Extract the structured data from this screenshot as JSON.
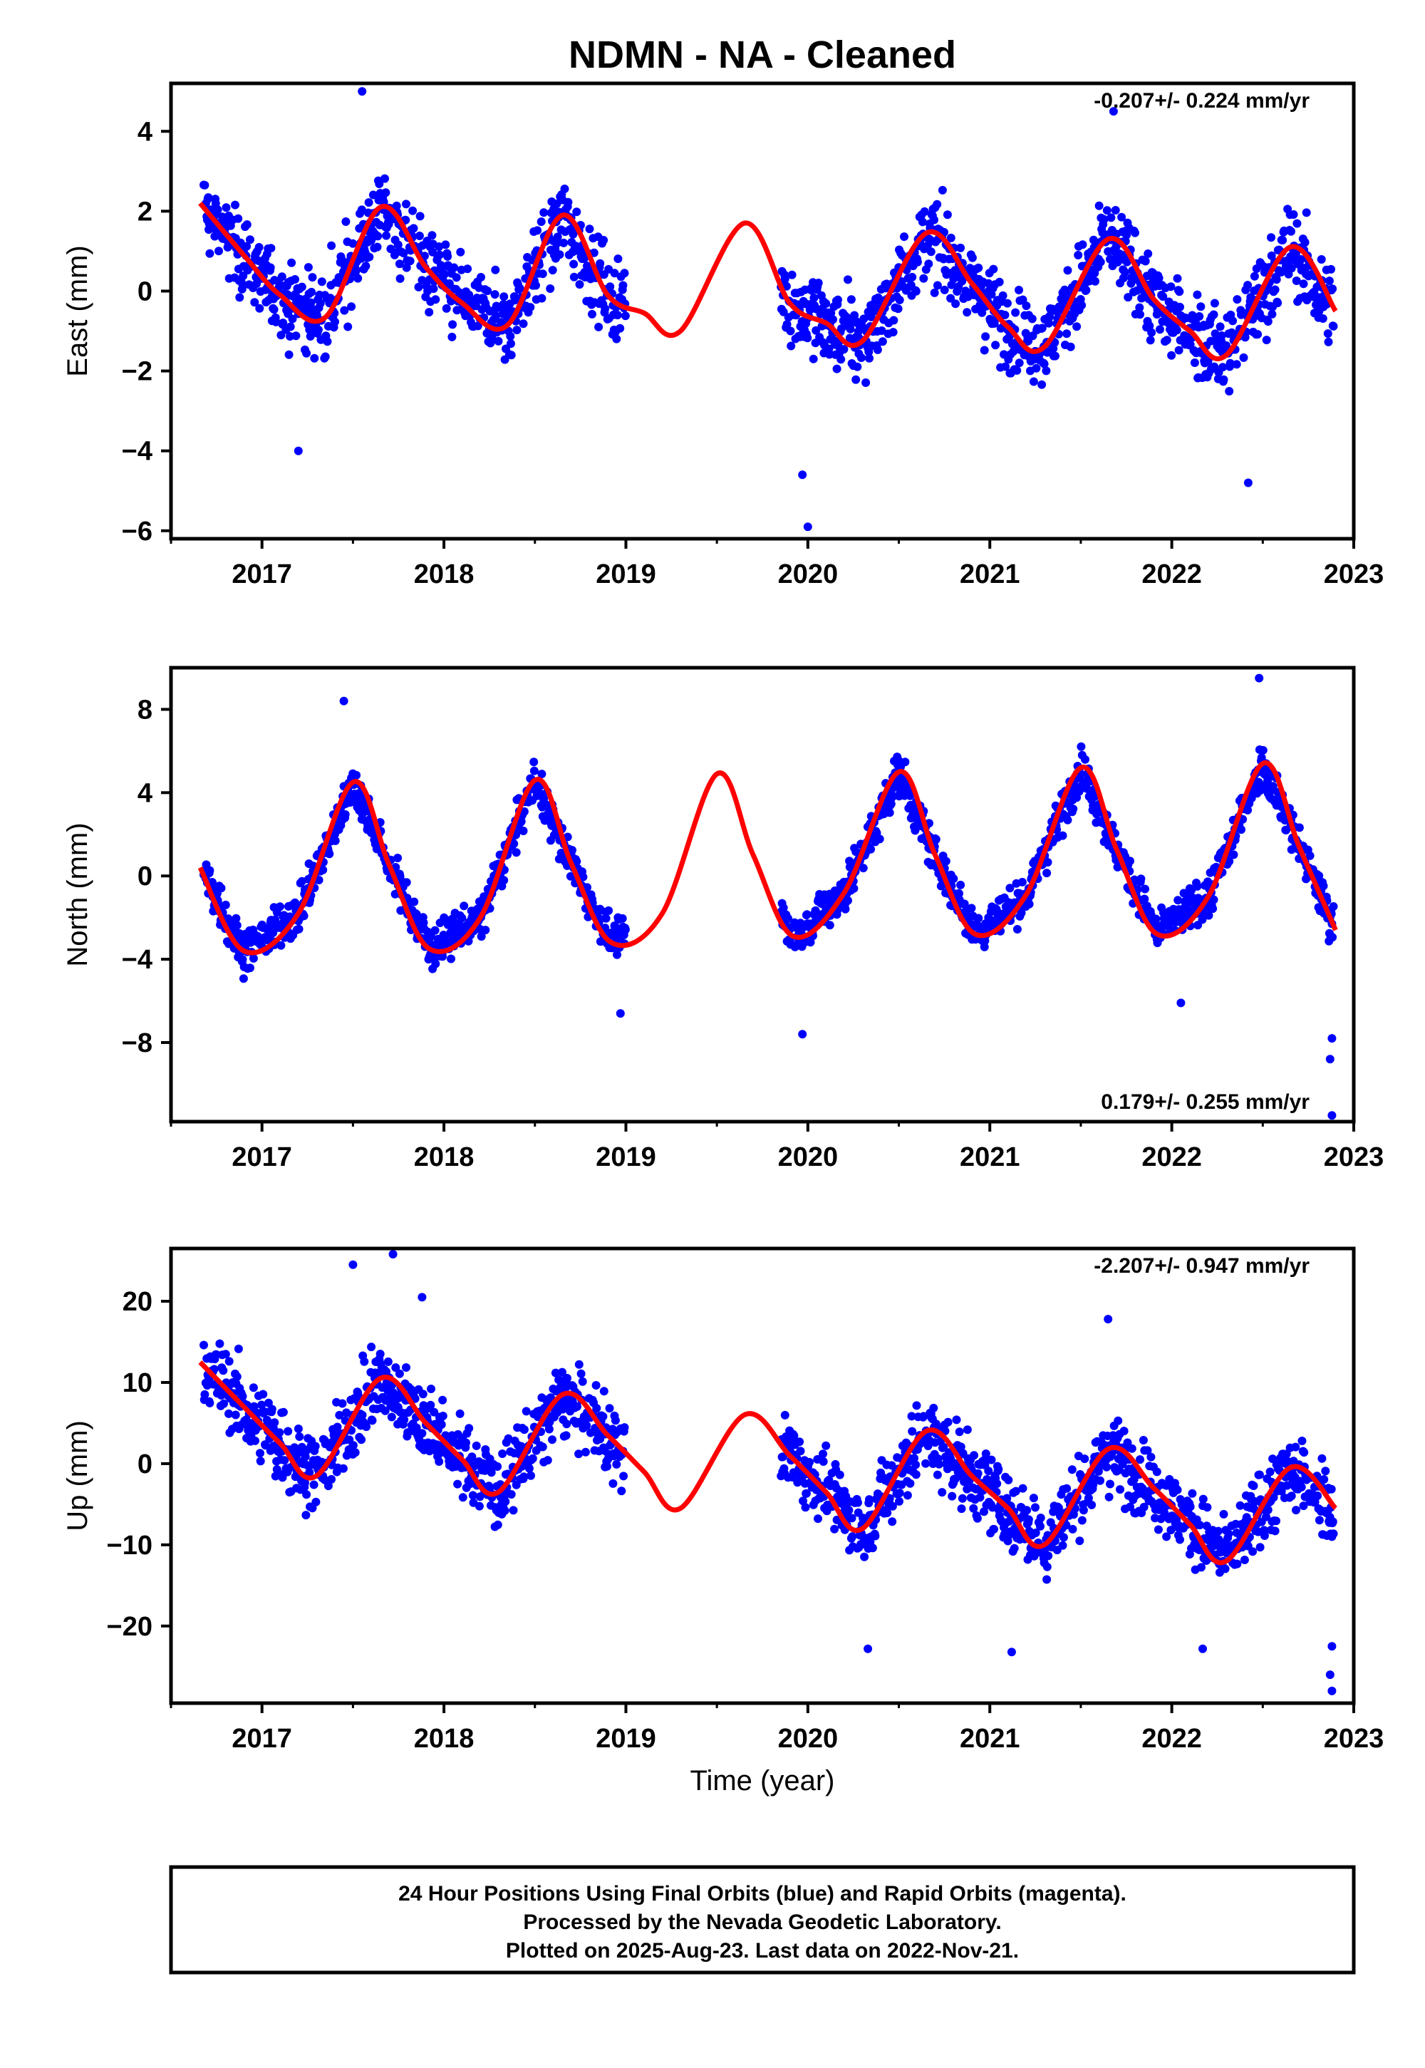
{
  "title": "NDMN  - NA - Cleaned",
  "xlabel": "Time (year)",
  "footer": {
    "line1": "24 Hour Positions Using Final Orbits (blue) and Rapid Orbits (magenta).",
    "line2": "Processed by the Nevada Geodetic Laboratory.",
    "line3": "Plotted on 2025-Aug-23. Last data on 2022-Nov-21."
  },
  "colors": {
    "points": "#0000ff",
    "model": "#ff0000",
    "axis": "#000000"
  },
  "chart_data": [
    {
      "type": "scatter",
      "name": "east",
      "ylabel": "East (mm)",
      "rate_label": "-0.207+/- 0.224 mm/yr",
      "rate_position": "top-right",
      "xlim": [
        2016.5,
        2023.0
      ],
      "ylim": [
        -6.2,
        5.2
      ],
      "x_ticks": [
        "2017",
        "2018",
        "2019",
        "2020",
        "2021",
        "2022",
        "2023"
      ],
      "y_ticks": [
        "-6",
        "-4",
        "-2",
        "0",
        "2",
        "4"
      ],
      "y_tick_values": [
        -6,
        -4,
        -2,
        0,
        2,
        4
      ],
      "model_x": [
        2016.66,
        2016.9,
        2017.1,
        2017.35,
        2017.65,
        2017.9,
        2018.1,
        2018.35,
        2018.65,
        2018.9,
        2019.1,
        2019.3,
        2019.65,
        2019.9,
        2020.1,
        2020.3,
        2020.65,
        2020.9,
        2021.1,
        2021.3,
        2021.65,
        2021.9,
        2022.1,
        2022.3,
        2022.65,
        2022.9
      ],
      "model_y": [
        2.2,
        0.9,
        -0.1,
        -0.65,
        2.1,
        0.6,
        -0.3,
        -0.85,
        1.9,
        -0.1,
        -0.55,
        -1.0,
        1.7,
        -0.3,
        -0.8,
        -1.25,
        1.45,
        0.2,
        -0.9,
        -1.4,
        1.3,
        -0.2,
        -1.0,
        -1.6,
        1.1,
        -0.5
      ],
      "gaps": [
        [
          2019.0,
          2019.85
        ]
      ],
      "amp": 1.45,
      "noise": 0.85,
      "scatter_offset": 0.2,
      "extremes": [
        [
          2020.0,
          -5.9
        ],
        [
          2019.97,
          -4.6
        ],
        [
          2017.55,
          5.0
        ],
        [
          2021.68,
          4.5
        ],
        [
          2022.42,
          -4.8
        ],
        [
          2017.2,
          -4.0
        ]
      ]
    },
    {
      "type": "scatter",
      "name": "north",
      "ylabel": "North (mm)",
      "rate_label": "0.179+/- 0.255 mm/yr",
      "rate_position": "bottom-right",
      "xlim": [
        2016.5,
        2023.0
      ],
      "ylim": [
        -11.8,
        10.0
      ],
      "x_ticks": [
        "2017",
        "2018",
        "2019",
        "2020",
        "2021",
        "2022",
        "2023"
      ],
      "y_ticks": [
        "-8",
        "-4",
        "0",
        "4",
        "8"
      ],
      "y_tick_values": [
        -8,
        -4,
        0,
        4,
        8
      ],
      "model_x": [
        2016.66,
        2016.9,
        2017.2,
        2017.5,
        2017.7,
        2017.92,
        2018.2,
        2018.5,
        2018.7,
        2018.92,
        2019.2,
        2019.5,
        2019.7,
        2019.92,
        2020.2,
        2020.5,
        2020.7,
        2020.92,
        2021.2,
        2021.5,
        2021.7,
        2021.92,
        2022.2,
        2022.5,
        2022.7,
        2022.9
      ],
      "model_y": [
        0.4,
        -3.6,
        -1.8,
        4.5,
        0.5,
        -3.5,
        -2.0,
        4.6,
        0.6,
        -3.2,
        -1.8,
        4.9,
        1.0,
        -2.9,
        -0.8,
        5.0,
        1.0,
        -2.8,
        -0.9,
        5.2,
        1.2,
        -2.8,
        -1.0,
        5.4,
        1.4,
        -2.6
      ],
      "gaps": [
        [
          2019.0,
          2019.85
        ]
      ],
      "amp": 4.2,
      "noise": 0.8,
      "scatter_offset": 0.4,
      "extremes": [
        [
          2022.88,
          -11.5
        ],
        [
          2022.87,
          -8.8
        ],
        [
          2022.88,
          -7.8
        ],
        [
          2017.45,
          8.4
        ],
        [
          2022.48,
          9.5
        ],
        [
          2019.97,
          -7.6
        ],
        [
          2018.97,
          -6.6
        ],
        [
          2022.05,
          -6.1
        ]
      ]
    },
    {
      "type": "scatter",
      "name": "up",
      "ylabel": "Up (mm)",
      "rate_label": "-2.207+/- 0.947 mm/yr",
      "rate_position": "top-right",
      "xlim": [
        2016.5,
        2023.0
      ],
      "ylim": [
        -29.5,
        26.5
      ],
      "x_ticks": [
        "2017",
        "2018",
        "2019",
        "2020",
        "2021",
        "2022",
        "2023"
      ],
      "y_ticks": [
        "-20",
        "-10",
        "0",
        "10",
        "20"
      ],
      "y_tick_values": [
        -20,
        -10,
        0,
        10,
        20
      ],
      "model_x": [
        2016.66,
        2016.9,
        2017.1,
        2017.3,
        2017.65,
        2017.9,
        2018.1,
        2018.3,
        2018.65,
        2018.9,
        2019.1,
        2019.3,
        2019.65,
        2019.9,
        2020.1,
        2020.3,
        2020.65,
        2020.9,
        2021.1,
        2021.3,
        2021.65,
        2021.9,
        2022.1,
        2022.3,
        2022.65,
        2022.9
      ],
      "model_y": [
        12.5,
        7.0,
        2.5,
        -1.5,
        10.5,
        5.0,
        0.5,
        -3.5,
        8.5,
        3.5,
        -1.0,
        -5.5,
        6.0,
        1.0,
        -3.5,
        -8.0,
        4.0,
        -1.5,
        -5.5,
        -10.0,
        1.8,
        -3.0,
        -7.5,
        -12.0,
        -0.5,
        -5.5
      ],
      "gaps": [
        [
          2019.0,
          2019.85
        ]
      ],
      "amp": 6.0,
      "noise": 3.8,
      "scatter_offset": 1.0,
      "extremes": [
        [
          2022.88,
          -28.0
        ],
        [
          2022.87,
          -26.0
        ],
        [
          2022.88,
          -22.5
        ],
        [
          2017.72,
          25.8
        ],
        [
          2017.5,
          24.5
        ],
        [
          2021.65,
          17.8
        ],
        [
          2020.33,
          -22.8
        ],
        [
          2021.12,
          -23.2
        ],
        [
          2022.17,
          -22.8
        ],
        [
          2017.88,
          20.5
        ]
      ]
    }
  ]
}
